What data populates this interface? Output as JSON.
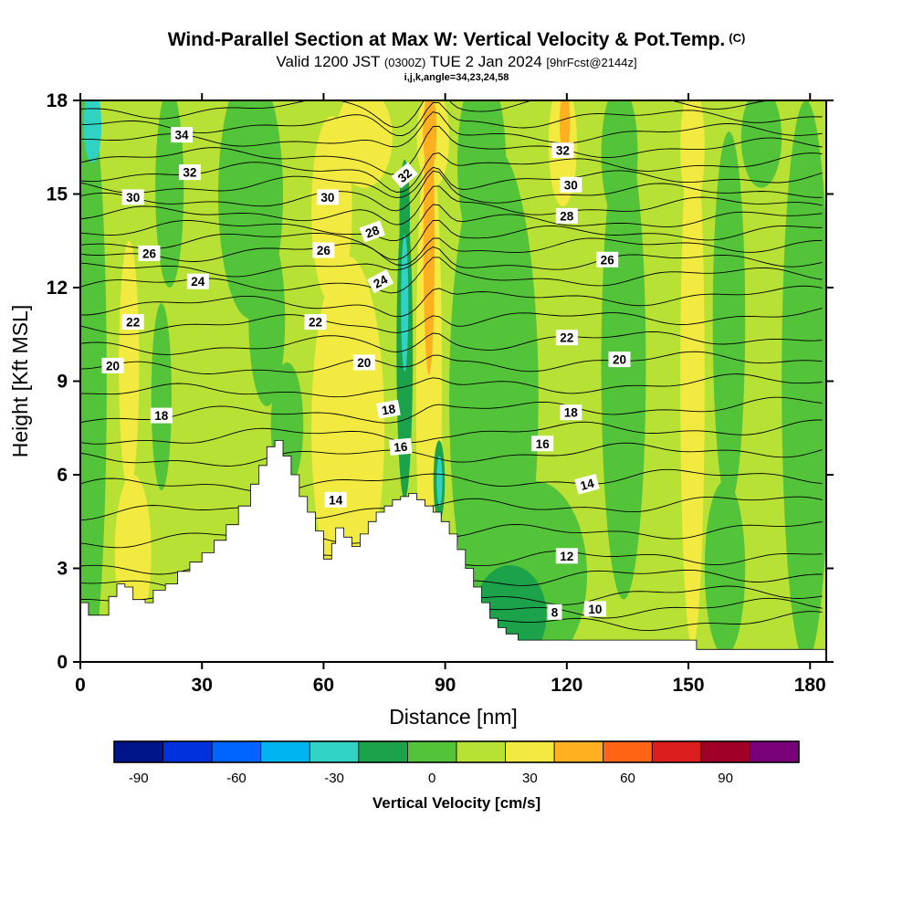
{
  "header": {
    "title": "Wind-Parallel Section at Max W: Vertical Velocity & Pot.Temp.",
    "title_suffix": "(C)",
    "subtitle_parts": [
      "Valid 1200 JST ",
      "(0300Z)",
      " TUE 2 Jan 2024 ",
      "[9hrFcst@2144z]"
    ],
    "info_line": "i,j,k,angle=34,23,24,58"
  },
  "chart_data": {
    "type": "heatmap",
    "description": "Vertical cross-section along wind at max W: shaded vertical velocity with potential temperature contours and terrain silhouette",
    "axes": {
      "x": {
        "label": "Distance [nm]",
        "min": 0,
        "max": 184,
        "ticks": [
          0,
          30,
          60,
          90,
          120,
          150,
          180
        ]
      },
      "y": {
        "label": "Height [Kft MSL]",
        "min": 0,
        "max": 18,
        "ticks": [
          0,
          3,
          6,
          9,
          12,
          15,
          18
        ]
      }
    },
    "contours": {
      "variable": "Potential Temperature (C)",
      "interval": 1,
      "labeled_interval": 2,
      "theta_heights": {
        "8": 1.1,
        "10": 2.0,
        "12": 3.2,
        "14": 4.9,
        "16": 6.6,
        "18": 8.0,
        "20": 9.5,
        "22": 10.9,
        "24": 12.2,
        "26": 13.2,
        "28": 14.0,
        "30": 14.9,
        "32": 15.8,
        "34": 16.8,
        "36": 17.8
      },
      "labels": [
        [
          "34",
          25,
          16.9,
          0
        ],
        [
          "32",
          27,
          15.7,
          0
        ],
        [
          "30",
          13,
          14.9,
          0
        ],
        [
          "26",
          17,
          13.1,
          0
        ],
        [
          "24",
          29,
          12.2,
          0
        ],
        [
          "22",
          13,
          10.9,
          0
        ],
        [
          "20",
          8,
          9.5,
          0
        ],
        [
          "18",
          20,
          7.9,
          0
        ],
        [
          "30",
          61,
          14.9,
          0
        ],
        [
          "32",
          80,
          15.6,
          -40
        ],
        [
          "28",
          72,
          13.8,
          -20
        ],
        [
          "26",
          60,
          13.2,
          0
        ],
        [
          "24",
          74,
          12.2,
          -28
        ],
        [
          "22",
          58,
          10.9,
          0
        ],
        [
          "20",
          70,
          9.6,
          0
        ],
        [
          "18",
          76,
          8.1,
          -10
        ],
        [
          "16",
          79,
          6.9,
          -5
        ],
        [
          "14",
          63,
          5.2,
          0
        ],
        [
          "32",
          119,
          16.4,
          0
        ],
        [
          "30",
          121,
          15.3,
          0
        ],
        [
          "28",
          120,
          14.3,
          0
        ],
        [
          "26",
          130,
          12.9,
          0
        ],
        [
          "22",
          120,
          10.4,
          0
        ],
        [
          "20",
          133,
          9.7,
          0
        ],
        [
          "18",
          121,
          8.0,
          0
        ],
        [
          "16",
          114,
          7.0,
          0
        ],
        [
          "14",
          125,
          5.7,
          -15
        ],
        [
          "12",
          120,
          3.4,
          0
        ],
        [
          "10",
          127,
          1.7,
          0
        ],
        [
          "8",
          117,
          1.6,
          0
        ]
      ]
    },
    "terrain_profile_nm_kft": [
      [
        0,
        1.9
      ],
      [
        2,
        1.5
      ],
      [
        5,
        1.5
      ],
      [
        7,
        2.1
      ],
      [
        9,
        2.5
      ],
      [
        11,
        2.4
      ],
      [
        13,
        2.0
      ],
      [
        16,
        1.9
      ],
      [
        18,
        2.3
      ],
      [
        21,
        2.5
      ],
      [
        24,
        2.9
      ],
      [
        27,
        3.2
      ],
      [
        30,
        3.5
      ],
      [
        33,
        3.9
      ],
      [
        36,
        4.4
      ],
      [
        39,
        5.0
      ],
      [
        42,
        5.7
      ],
      [
        44,
        6.3
      ],
      [
        46,
        6.9
      ],
      [
        48,
        7.1
      ],
      [
        50,
        6.6
      ],
      [
        52,
        6.0
      ],
      [
        54,
        5.3
      ],
      [
        56,
        4.8
      ],
      [
        58,
        4.2
      ],
      [
        60,
        3.3
      ],
      [
        62,
        3.8
      ],
      [
        63,
        4.3
      ],
      [
        65,
        4.0
      ],
      [
        67,
        3.7
      ],
      [
        69,
        4.1
      ],
      [
        71,
        4.5
      ],
      [
        73,
        4.8
      ],
      [
        75,
        5.0
      ],
      [
        77,
        5.2
      ],
      [
        79,
        5.3
      ],
      [
        81,
        5.4
      ],
      [
        83,
        5.2
      ],
      [
        85,
        5.0
      ],
      [
        87,
        4.8
      ],
      [
        89,
        4.5
      ],
      [
        91,
        4.1
      ],
      [
        93,
        3.6
      ],
      [
        95,
        3.0
      ],
      [
        97,
        2.4
      ],
      [
        99,
        1.9
      ],
      [
        101,
        1.4
      ],
      [
        103,
        1.1
      ],
      [
        105,
        0.9
      ],
      [
        108,
        0.7
      ],
      [
        150,
        0.7
      ],
      [
        152,
        0.4
      ],
      [
        184,
        0.4
      ]
    ],
    "shading": {
      "palette": {
        "base": "#b7e135",
        "y": "#f2ea40",
        "g": "#53c43a",
        "dg": "#1ca24b",
        "c": "#30d2c3",
        "o": "#ffb020"
      },
      "blobs": [
        [
          13,
          3.5,
          4.5,
          2.5,
          "y"
        ],
        [
          12,
          9.5,
          2.5,
          4,
          "y"
        ],
        [
          66,
          7.5,
          9,
          5.5,
          "y"
        ],
        [
          62,
          14.5,
          5,
          3,
          "y"
        ],
        [
          70,
          16.8,
          7,
          1.6,
          "y"
        ],
        [
          86,
          9,
          3.2,
          8,
          "y"
        ],
        [
          87,
          16.8,
          4,
          1.6,
          "y"
        ],
        [
          119,
          16.6,
          3.5,
          2,
          "y"
        ],
        [
          151,
          9,
          3,
          8.5,
          "y"
        ],
        [
          151,
          16.5,
          3,
          2,
          "y"
        ],
        [
          1,
          9,
          5.5,
          10,
          "g"
        ],
        [
          22,
          15.2,
          3.5,
          3.2,
          "g"
        ],
        [
          20,
          8.5,
          2.5,
          3,
          "g"
        ],
        [
          42,
          15,
          8,
          4,
          "g"
        ],
        [
          46,
          11,
          4.5,
          2.8,
          "g"
        ],
        [
          51,
          7.6,
          4,
          2,
          "g"
        ],
        [
          102,
          8.5,
          11,
          8,
          "g"
        ],
        [
          99,
          16,
          6,
          3,
          "g"
        ],
        [
          112,
          2.8,
          13,
          3,
          "g"
        ],
        [
          134,
          9.5,
          5.5,
          7.5,
          "g"
        ],
        [
          133,
          16.3,
          4.5,
          2.2,
          "g"
        ],
        [
          160,
          11,
          4,
          6,
          "g"
        ],
        [
          159,
          3,
          5,
          2.8,
          "g"
        ],
        [
          179,
          9,
          6,
          9,
          "g"
        ],
        [
          168,
          16.8,
          5,
          1.6,
          "g"
        ],
        [
          80,
          10,
          2,
          4.8,
          "dg"
        ],
        [
          80,
          14.3,
          1.3,
          1.8,
          "dg"
        ],
        [
          106,
          1.5,
          9,
          1.6,
          "dg"
        ],
        [
          88.5,
          5.8,
          1.4,
          1.3,
          "dg"
        ],
        [
          3,
          17.2,
          2.2,
          1.2,
          "c"
        ],
        [
          80,
          11.5,
          0.9,
          2.2,
          "c"
        ],
        [
          88.6,
          5.8,
          0.7,
          0.8,
          "c"
        ],
        [
          86,
          13.5,
          1.4,
          4.3,
          "o"
        ],
        [
          86.2,
          17,
          1.7,
          1.3,
          "o"
        ],
        [
          119.5,
          17.3,
          1.3,
          1,
          "o"
        ]
      ]
    },
    "colorbar": {
      "label": "Vertical Velocity [cm/s]",
      "start_value": -97.5,
      "step": 15,
      "colors": [
        "#001489",
        "#0032dc",
        "#0064ff",
        "#00b4f0",
        "#30d2c3",
        "#1ca24b",
        "#53c43a",
        "#b7e135",
        "#f2ea40",
        "#ffb020",
        "#ff6414",
        "#dc1e1e",
        "#a00028",
        "#780078"
      ],
      "tick_values": [
        -90,
        -60,
        -30,
        0,
        30,
        60,
        90
      ]
    }
  }
}
